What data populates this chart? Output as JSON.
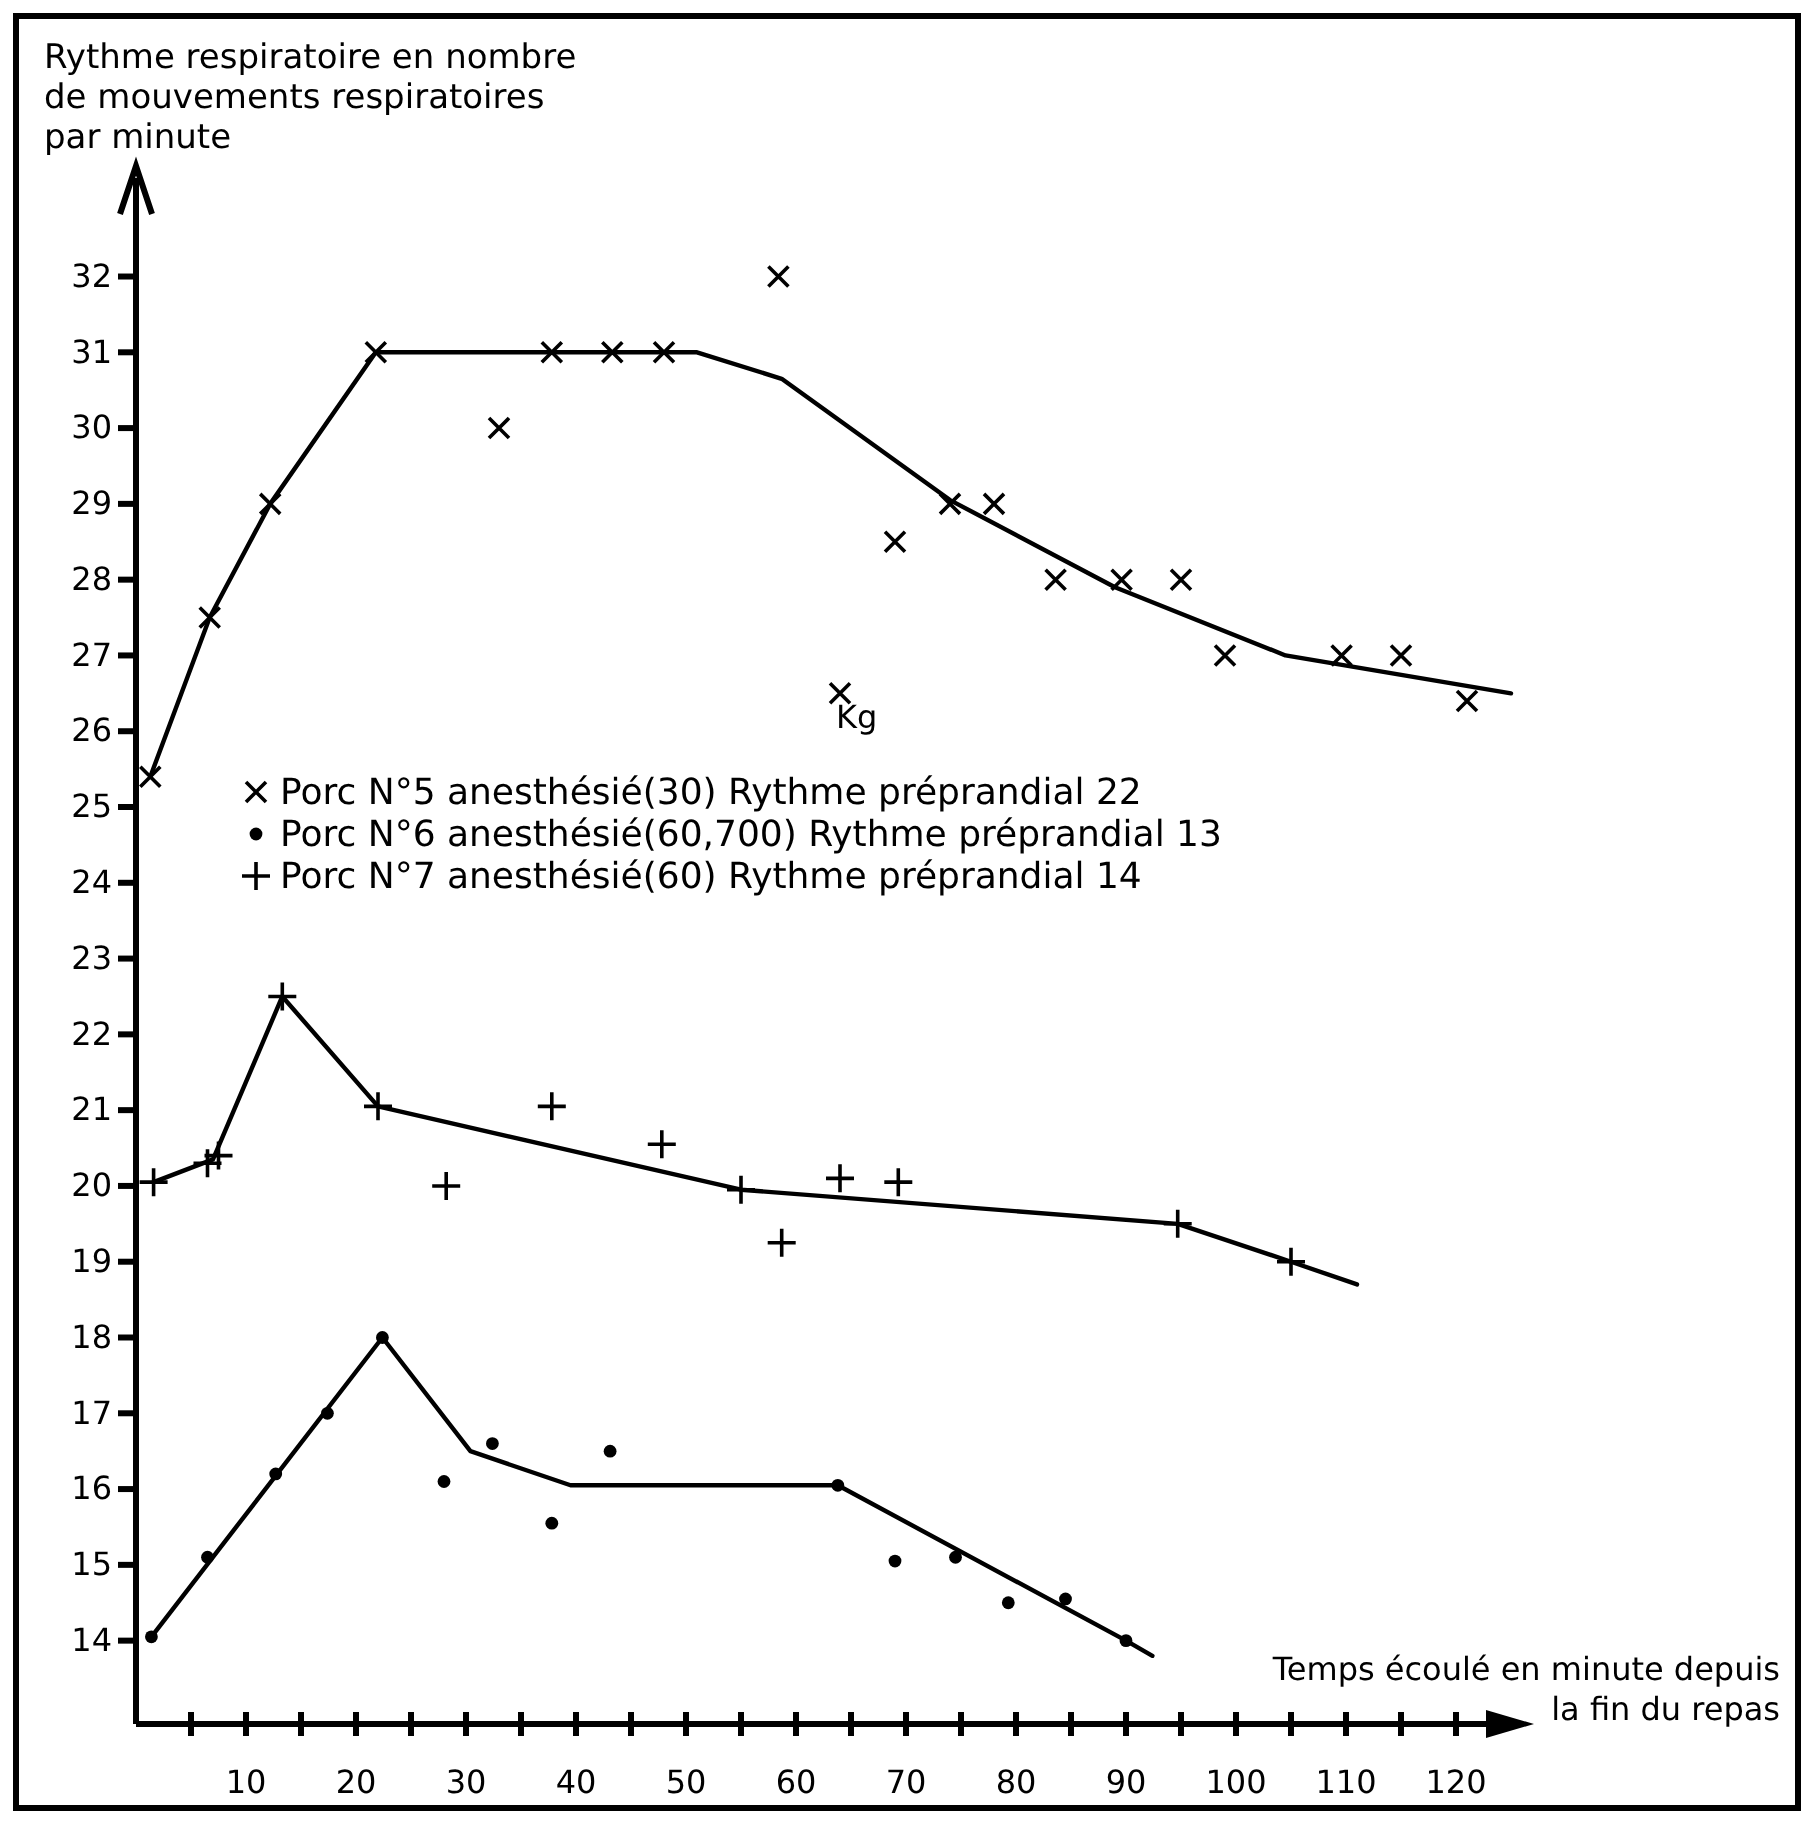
{
  "chart_data": {
    "type": "scatter",
    "ylabel": "Rythme respiratoire en nombre de mouvements respiratoires par minute",
    "xlabel": "Temps écoulé en minute depuis la fin du repas",
    "xlim": [
      0,
      126
    ],
    "ylim": [
      12.9,
      33.3
    ],
    "xticks": [
      {
        "value": 5,
        "label": null
      },
      10,
      {
        "value": 15,
        "label": null
      },
      20,
      {
        "value": 25,
        "label": null
      },
      30,
      {
        "value": 35,
        "label": null
      },
      40,
      {
        "value": 45,
        "label": null
      },
      50,
      {
        "value": 55,
        "label": null
      },
      60,
      {
        "value": 65,
        "label": null
      },
      70,
      {
        "value": 75,
        "label": null
      },
      80,
      {
        "value": 85,
        "label": null
      },
      90,
      {
        "value": 95,
        "label": null
      },
      100,
      {
        "value": 105,
        "label": null
      },
      110,
      {
        "value": 115,
        "label": null
      },
      120
    ],
    "yticks": [
      14,
      15,
      16,
      17,
      18,
      19,
      20,
      21,
      22,
      23,
      24,
      25,
      26,
      27,
      28,
      29,
      30,
      31,
      32
    ],
    "grid": false,
    "legend": "left",
    "annotations": [
      "Kg"
    ],
    "series": [
      {
        "name": "Porc N°5 anesthésié(30) Rythme préprandial 22",
        "marker": "cross",
        "color": "#000000",
        "x": [
          1.3,
          6.7,
          12.2,
          21.8,
          33,
          37.8,
          43.3,
          48,
          58.4,
          64,
          69,
          74,
          78,
          83.6,
          89.6,
          95,
          99,
          109.6,
          115,
          121
        ],
        "values": [
          25.4,
          27.5,
          29,
          31,
          30,
          31,
          31,
          31,
          32,
          26.5,
          28.5,
          29,
          29,
          28,
          28,
          28,
          27,
          27,
          27,
          26.4
        ]
      },
      {
        "name": "Porc N°6 anesthésié(60,700) Rythme préprandial 13",
        "marker": "circle",
        "color": "#000000",
        "x": [
          1.4,
          6.5,
          12.7,
          17.4,
          22.4,
          28,
          32.4,
          37.8,
          43.1,
          63.8,
          69,
          74.5,
          79.3,
          84.5,
          90
        ],
        "values": [
          14.05,
          15.1,
          16.2,
          17,
          18,
          16.1,
          16.6,
          15.55,
          16.5,
          16.05,
          15.05,
          15.1,
          14.5,
          14.55,
          14
        ]
      },
      {
        "name": "Porc N°7 anesthésié(60) Rythme préprandial 14",
        "marker": "plus",
        "color": "#000000",
        "x": [
          1.6,
          6.5,
          7.5,
          13.3,
          22,
          28.2,
          37.8,
          47.8,
          55,
          58.7,
          64,
          69.3,
          94.7,
          105
        ],
        "values": [
          20.05,
          20.3,
          20.4,
          22.5,
          21.05,
          20,
          21.05,
          20.55,
          19.95,
          19.25,
          20.1,
          20.05,
          19.5,
          19
        ]
      },
      {
        "type": "line",
        "marker": "none",
        "color": "#000000",
        "x": [
          1.3,
          6.7,
          12.2,
          21.8,
          51,
          58.7,
          74,
          89,
          104.5,
          125
        ],
        "values": [
          25.4,
          27.5,
          29,
          31,
          31,
          30.65,
          29.05,
          27.9,
          27,
          26.5
        ]
      },
      {
        "type": "line",
        "marker": "none",
        "color": "#000000",
        "x": [
          1.4,
          22.4,
          30.4,
          39.5,
          63.8,
          90,
          92.4
        ],
        "values": [
          14.05,
          18,
          16.5,
          16.05,
          16.05,
          14,
          13.8
        ]
      },
      {
        "type": "line",
        "marker": "none",
        "color": "#000000",
        "x": [
          1.6,
          7,
          13.3,
          22,
          55,
          94.7,
          105,
          111
        ],
        "values": [
          20.05,
          20.35,
          22.5,
          21.05,
          19.95,
          19.5,
          19,
          18.7
        ]
      }
    ]
  }
}
